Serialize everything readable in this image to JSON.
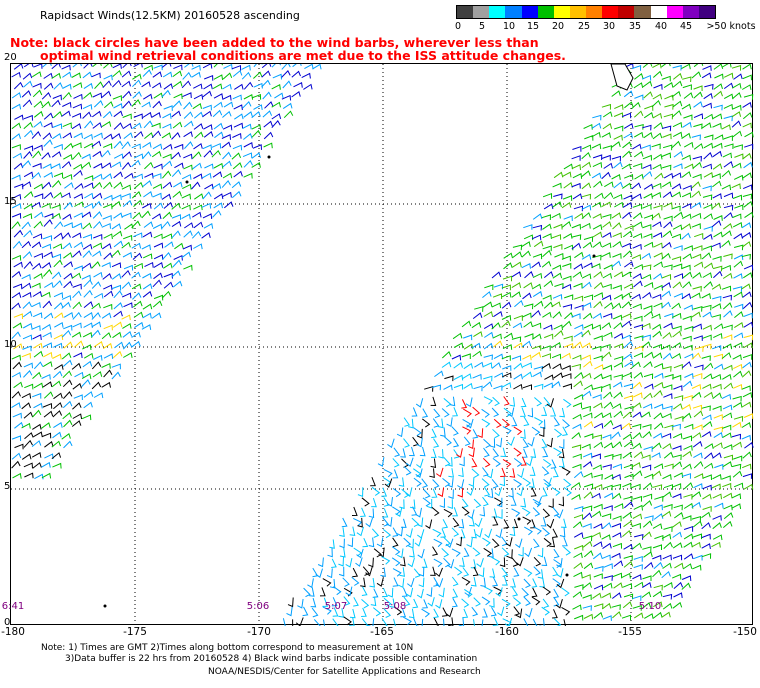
{
  "header": {
    "title": "Rapidsact Winds(12.5KM) 20160528 ascending",
    "note_line_1": "Note: black circles have been added to the wind barbs, wherever less than",
    "note_line_2": "optimal wind retrieval conditions are met due to the ISS attitude changes."
  },
  "colorbar": {
    "colors": [
      "#404040",
      "#a0a0a0",
      "#00ffff",
      "#0080ff",
      "#0000ff",
      "#00c000",
      "#ffff00",
      "#ffc000",
      "#ff8000",
      "#ff0000",
      "#c00000",
      "#806040",
      "#ffffff",
      "#ff00ff",
      "#8000c0",
      "#400080"
    ],
    "labels": [
      "0",
      "5",
      "10",
      "15",
      "20",
      "25",
      "30",
      "35",
      "40",
      "45",
      ">50 knots"
    ]
  },
  "axes": {
    "lat_labels": [
      "20",
      "15",
      "10",
      "5",
      "0"
    ],
    "lon_labels": [
      "-180",
      "-175",
      "-170",
      "-165",
      "-160",
      "-155",
      "-150"
    ]
  },
  "pass_times": [
    "6:41",
    "5:06",
    "5:07",
    "5:08",
    "5:10"
  ],
  "footer": {
    "line_1": "Note: 1) Times are GMT 2)Times along bottom correspond to measurement at 10N",
    "line_2": "3)Data buffer is 22 hrs from 20160528 4) Black wind barbs indicate possible contamination",
    "line_3": "NOAA/NESDIS/Center for Satellite Applications and Research"
  },
  "colors": {
    "note_text": "#ff0000",
    "pass_time_text": "#800080",
    "speed_colors": [
      "#00c8ff",
      "#00a0ff",
      "#0000d0",
      "#00c000",
      "#40c000",
      "#ffd700",
      "#ff8000",
      "#ff0000",
      "#000000"
    ]
  },
  "legend_icons": [
    "wind-barb-icon"
  ]
}
